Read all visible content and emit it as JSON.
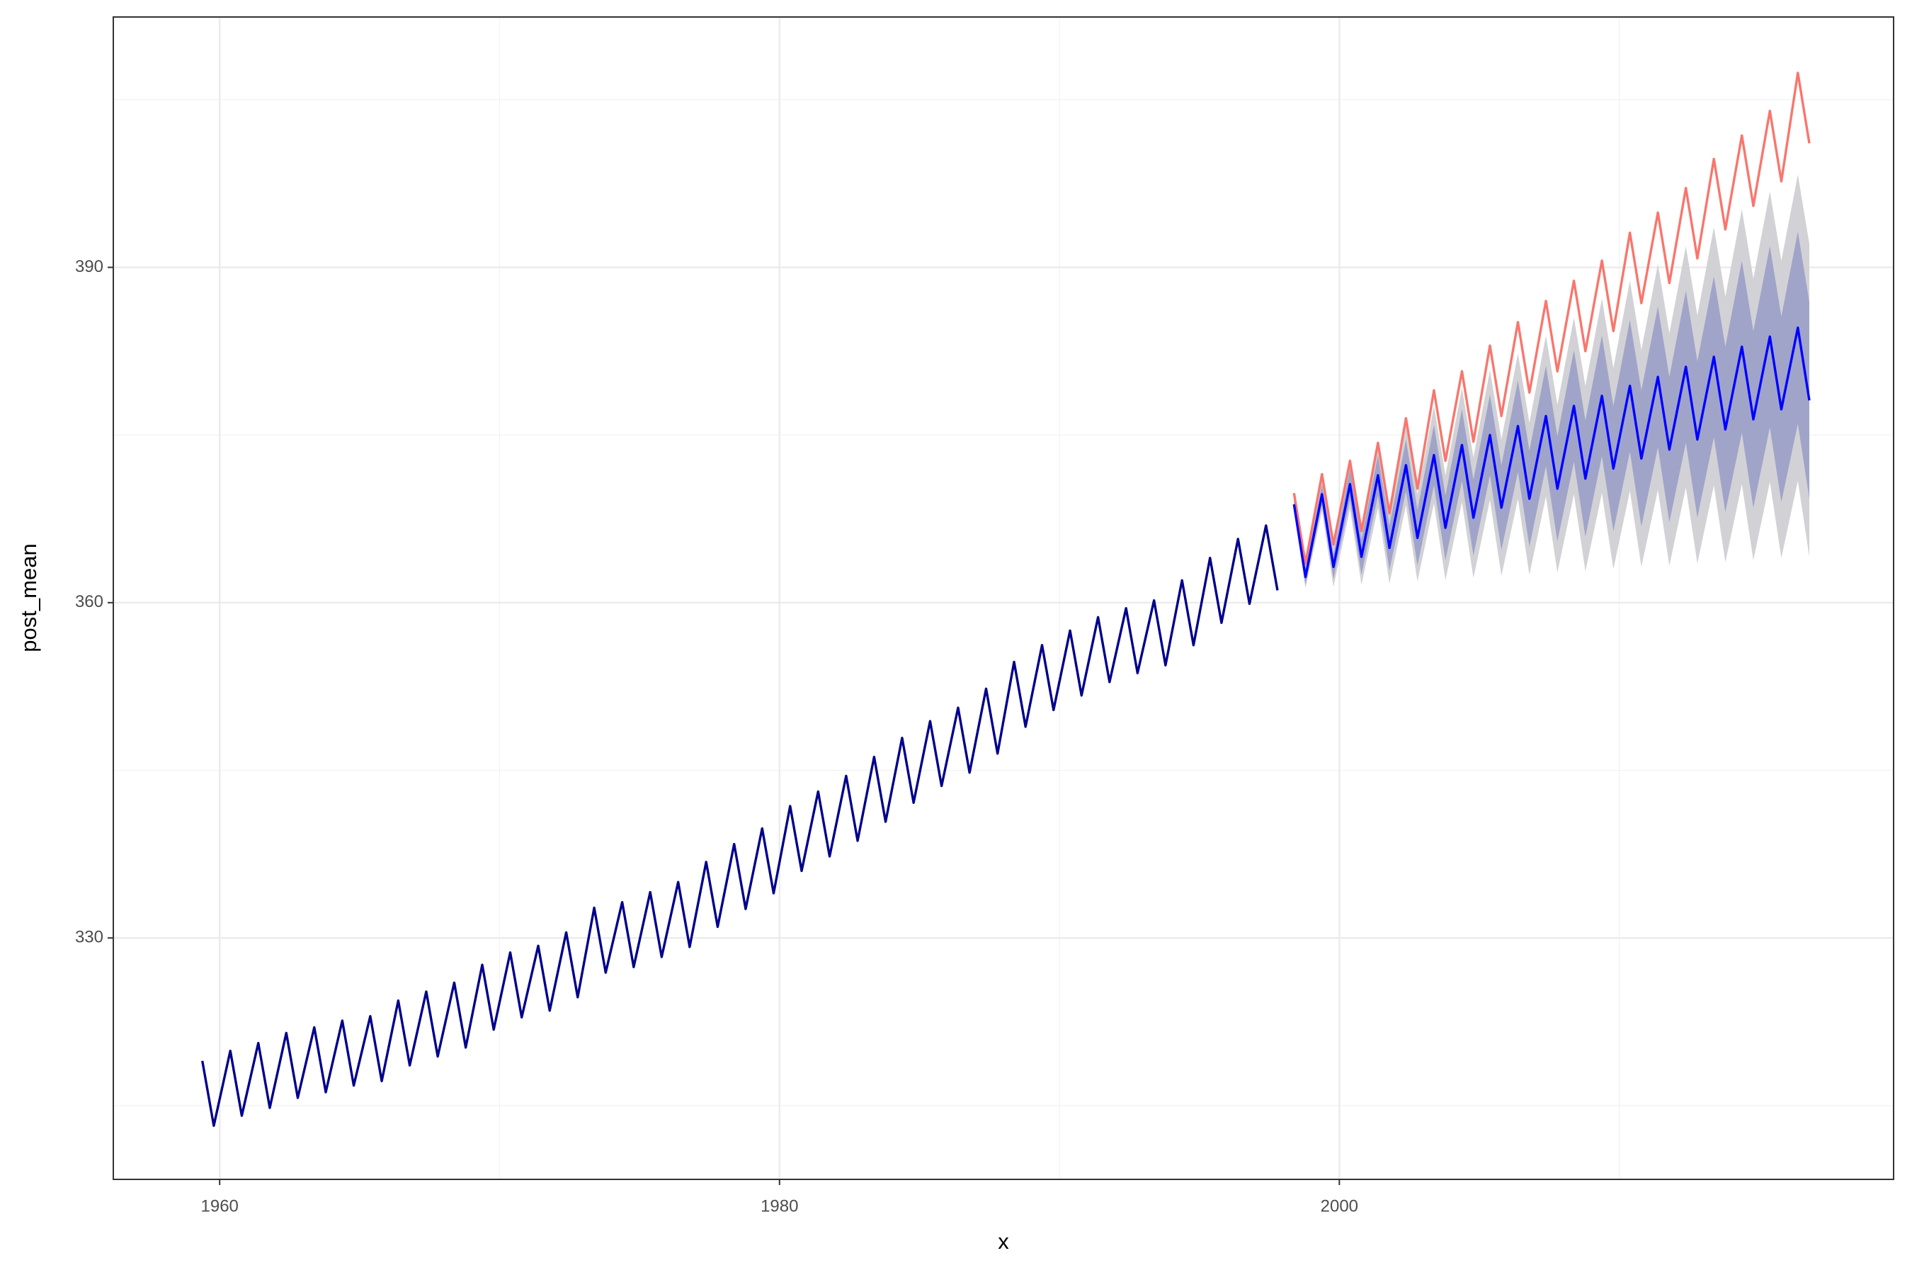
{
  "chart_data": {
    "type": "line",
    "x_label": "x",
    "y_label": "post_mean",
    "xlim": [
      1956.2,
      2019.8
    ],
    "ylim": [
      308.4,
      412.4
    ],
    "xticks": [
      1960,
      1980,
      2000
    ],
    "yticks": [
      330,
      360,
      390
    ],
    "x_minor_grid": [
      1970,
      1990,
      2010
    ],
    "y_minor_grid": [
      315,
      345,
      375,
      405
    ],
    "grid": true,
    "bands": [
      {
        "color": "#d2d2d6",
        "x": [
          1998.38,
          1998.79,
          1999.38,
          1999.79,
          2000.38,
          2000.79,
          2001.38,
          2001.79,
          2002.38,
          2002.79,
          2003.38,
          2003.79,
          2004.38,
          2004.79,
          2005.38,
          2005.79,
          2006.38,
          2006.79,
          2007.38,
          2007.79,
          2008.38,
          2008.79,
          2009.38,
          2009.79,
          2010.38,
          2010.79,
          2011.38,
          2011.79,
          2012.38,
          2012.79,
          2013.38,
          2013.79,
          2014.38,
          2014.79,
          2015.38,
          2015.79,
          2016.38,
          2016.79
        ],
        "lower": [
          368.1,
          361.3,
          368.2,
          361.4,
          368.4,
          361.6,
          368.5,
          361.7,
          368.7,
          361.9,
          368.9,
          362.0,
          369.0,
          362.2,
          369.2,
          362.4,
          369.3,
          362.5,
          369.5,
          362.7,
          369.7,
          362.8,
          369.8,
          363.0,
          370.0,
          363.2,
          370.1,
          363.3,
          370.3,
          363.5,
          370.5,
          363.6,
          370.6,
          363.8,
          370.8,
          364.0,
          370.9,
          364.1
        ],
        "upper": [
          369.6,
          363.4,
          371.2,
          365.0,
          372.8,
          366.6,
          374.3,
          368.1,
          375.9,
          369.7,
          377.6,
          371.4,
          379.2,
          373.0,
          380.8,
          374.6,
          382.3,
          376.1,
          383.9,
          377.7,
          385.5,
          379.4,
          387.2,
          381.0,
          388.8,
          382.6,
          390.3,
          384.1,
          391.9,
          385.7,
          393.6,
          387.4,
          395.2,
          389.0,
          396.8,
          390.6,
          398.3,
          392.1
        ]
      },
      {
        "color": "#a0a4c9",
        "x": [
          1998.38,
          1998.79,
          1999.38,
          1999.79,
          2000.38,
          2000.79,
          2001.38,
          2001.79,
          2002.38,
          2002.79,
          2003.38,
          2003.79,
          2004.38,
          2004.79,
          2005.38,
          2005.79,
          2006.38,
          2006.79,
          2007.38,
          2007.79,
          2008.38,
          2008.79,
          2009.38,
          2009.79,
          2010.38,
          2010.79,
          2011.38,
          2011.79,
          2012.38,
          2012.79,
          2013.38,
          2013.79,
          2014.38,
          2014.79,
          2015.38,
          2015.79,
          2016.38,
          2016.79
        ],
        "lower": [
          368.3,
          361.6,
          368.8,
          362.1,
          369.2,
          362.5,
          369.6,
          362.9,
          370.0,
          363.3,
          370.5,
          363.8,
          370.9,
          364.2,
          371.4,
          364.7,
          371.7,
          365.0,
          372.2,
          365.5,
          372.6,
          365.9,
          373.1,
          366.4,
          373.5,
          366.8,
          373.9,
          367.2,
          374.3,
          367.6,
          374.8,
          368.1,
          375.2,
          368.5,
          375.7,
          369.0,
          376.0,
          369.3
        ],
        "upper": [
          369.3,
          363.0,
          370.6,
          364.3,
          372.0,
          365.7,
          373.2,
          366.9,
          374.6,
          368.3,
          375.9,
          369.6,
          377.3,
          371.0,
          378.6,
          372.3,
          379.9,
          373.6,
          381.2,
          374.9,
          382.6,
          376.3,
          383.9,
          377.6,
          385.3,
          379.0,
          386.5,
          380.2,
          387.9,
          381.6,
          389.2,
          382.9,
          390.6,
          384.3,
          391.9,
          385.6,
          393.2,
          386.9
        ]
      }
    ],
    "series": [
      {
        "color": "#f8766d",
        "x": [
          1998.38,
          1998.79,
          1999.38,
          1999.79,
          2000.38,
          2000.79,
          2001.38,
          2001.79,
          2002.38,
          2002.79,
          2003.38,
          2003.79,
          2004.38,
          2004.79,
          2005.38,
          2005.79,
          2006.38,
          2006.79,
          2007.38,
          2007.79,
          2008.38,
          2008.79,
          2009.38,
          2009.79,
          2010.38,
          2010.79,
          2011.38,
          2011.79,
          2012.38,
          2012.79,
          2013.38,
          2013.79,
          2014.38,
          2014.79,
          2015.38,
          2015.79,
          2016.38,
          2016.79
        ],
        "values": [
          369.8,
          363.5,
          371.5,
          365.2,
          372.7,
          366.4,
          374.3,
          368.0,
          376.5,
          370.2,
          379.0,
          372.7,
          380.7,
          374.4,
          383.0,
          376.7,
          385.1,
          378.8,
          387.0,
          380.7,
          388.8,
          382.5,
          390.6,
          384.3,
          393.1,
          386.8,
          394.9,
          388.6,
          397.1,
          390.8,
          399.7,
          393.4,
          401.8,
          395.5,
          404.0,
          397.7,
          407.4,
          401.1
        ]
      },
      {
        "color": "#00008b",
        "x": [
          1959.38,
          1959.79,
          1960.38,
          1960.79,
          1961.38,
          1961.79,
          1962.38,
          1962.79,
          1963.38,
          1963.79,
          1964.38,
          1964.79,
          1965.38,
          1965.79,
          1966.38,
          1966.79,
          1967.38,
          1967.79,
          1968.38,
          1968.79,
          1969.38,
          1969.79,
          1970.38,
          1970.79,
          1971.38,
          1971.79,
          1972.38,
          1972.79,
          1973.38,
          1973.79,
          1974.38,
          1974.79,
          1975.38,
          1975.79,
          1976.38,
          1976.79,
          1977.38,
          1977.79,
          1978.38,
          1978.79,
          1979.38,
          1979.79,
          1980.38,
          1980.79,
          1981.38,
          1981.79,
          1982.38,
          1982.79,
          1983.38,
          1983.79,
          1984.38,
          1984.79,
          1985.38,
          1985.79,
          1986.38,
          1986.79,
          1987.38,
          1987.79,
          1988.38,
          1988.79,
          1989.38,
          1989.79,
          1990.38,
          1990.79,
          1991.38,
          1991.79,
          1992.38,
          1992.79,
          1993.38,
          1993.79,
          1994.38,
          1994.79,
          1995.38,
          1995.79,
          1996.38,
          1996.79,
          1997.38,
          1997.79
        ],
        "values": [
          319.0,
          313.2,
          319.9,
          314.1,
          320.6,
          314.8,
          321.5,
          315.7,
          322.0,
          316.2,
          322.6,
          316.8,
          323.0,
          317.2,
          324.4,
          318.6,
          325.2,
          319.4,
          326.0,
          320.2,
          327.6,
          321.8,
          328.7,
          322.9,
          329.3,
          323.5,
          330.5,
          324.7,
          332.7,
          326.9,
          333.2,
          327.4,
          334.1,
          328.3,
          335.0,
          329.2,
          336.8,
          331.0,
          338.4,
          332.6,
          339.8,
          334.0,
          341.8,
          336.0,
          343.1,
          337.3,
          344.5,
          338.7,
          346.2,
          340.4,
          347.9,
          342.1,
          349.4,
          343.6,
          350.6,
          344.8,
          352.3,
          346.5,
          354.7,
          348.9,
          356.2,
          350.4,
          357.5,
          351.7,
          358.7,
          352.9,
          359.5,
          353.7,
          360.2,
          354.4,
          362.0,
          356.2,
          364.0,
          358.2,
          365.7,
          359.9,
          366.9,
          361.1
        ]
      },
      {
        "color": "#0000ff",
        "x": [
          1998.38,
          1998.79,
          1999.38,
          1999.79,
          2000.38,
          2000.79,
          2001.38,
          2001.79,
          2002.38,
          2002.79,
          2003.38,
          2003.79,
          2004.38,
          2004.79,
          2005.38,
          2005.79,
          2006.38,
          2006.79,
          2007.38,
          2007.79,
          2008.38,
          2008.79,
          2009.38,
          2009.79,
          2010.38,
          2010.79,
          2011.38,
          2011.79,
          2012.38,
          2012.79,
          2013.38,
          2013.79,
          2014.38,
          2014.79,
          2015.38,
          2015.79,
          2016.38,
          2016.79
        ],
        "values": [
          368.8,
          362.3,
          369.7,
          363.2,
          370.6,
          364.1,
          371.4,
          364.9,
          372.3,
          365.8,
          373.2,
          366.7,
          374.1,
          367.6,
          375.0,
          368.5,
          375.8,
          369.3,
          376.7,
          370.2,
          377.6,
          371.1,
          378.5,
          372.0,
          379.4,
          372.9,
          380.2,
          373.7,
          381.1,
          374.6,
          382.0,
          375.5,
          382.9,
          376.4,
          383.8,
          377.3,
          384.6,
          378.1
        ]
      }
    ]
  }
}
